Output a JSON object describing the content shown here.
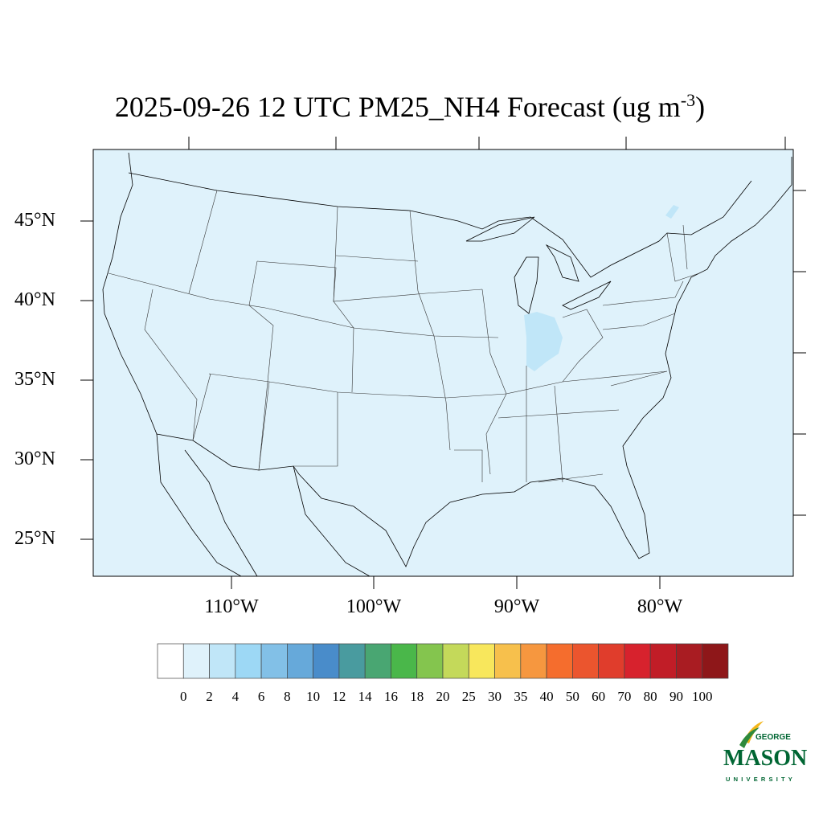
{
  "title": {
    "main": "2025-09-26 12 UTC PM25_NH4 Forecast (ug m",
    "sup": "-3",
    "close": ")"
  },
  "map": {
    "projection": "Lambert conformal (CONUS)",
    "background_color": "#dff2fb",
    "lat_labels": [
      "45°N",
      "40°N",
      "35°N",
      "30°N",
      "25°N"
    ],
    "lon_labels": [
      "110°W",
      "100°W",
      "90°W",
      "80°W"
    ],
    "highlight_region": "Indiana / southern Ohio, Lake Champlain area at 2–4 level",
    "highlight_color": "#c0e6f8"
  },
  "colorbar": {
    "labels": [
      "0",
      "2",
      "4",
      "6",
      "8",
      "10",
      "12",
      "14",
      "16",
      "18",
      "20",
      "25",
      "30",
      "35",
      "40",
      "50",
      "60",
      "70",
      "80",
      "90",
      "100"
    ],
    "colors": [
      "#ffffff",
      "#dff2fb",
      "#c0e6f8",
      "#9dd8f5",
      "#82c0e7",
      "#66a9da",
      "#498cca",
      "#499b9f",
      "#49a672",
      "#4ab74a",
      "#84c54e",
      "#c4d95a",
      "#f8e75c",
      "#f7c04c",
      "#f6973f",
      "#f56d2d",
      "#eb552e",
      "#e03d2c",
      "#d7222d",
      "#c11d27",
      "#a91c22",
      "#8e1719"
    ]
  },
  "logo": {
    "line1": "GEORGE",
    "line2": "MASON",
    "line3": "UNIVERSITY"
  }
}
